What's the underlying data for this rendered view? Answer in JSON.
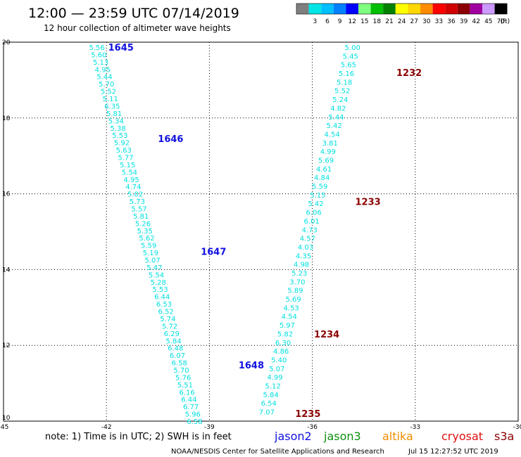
{
  "header": {
    "title": "12:00 — 23:59 UTC 07/14/2019",
    "subtitle": "12 hour collection of altimeter wave heights"
  },
  "color_scale": {
    "unit_label": "(ft)",
    "bins": [
      {
        "label": "",
        "color": "#7f7f7f"
      },
      {
        "label": "3",
        "color": "#00e5e5"
      },
      {
        "label": "6",
        "color": "#00bfff"
      },
      {
        "label": "9",
        "color": "#007fff"
      },
      {
        "label": "12",
        "color": "#0000ff"
      },
      {
        "label": "15",
        "color": "#7fff7f"
      },
      {
        "label": "18",
        "color": "#00bf00"
      },
      {
        "label": "21",
        "color": "#008000"
      },
      {
        "label": "24",
        "color": "#ffff00"
      },
      {
        "label": "27",
        "color": "#ffd700"
      },
      {
        "label": "30",
        "color": "#ff8c00"
      },
      {
        "label": "33",
        "color": "#ff0000"
      },
      {
        "label": "36",
        "color": "#d20000"
      },
      {
        "label": "39",
        "color": "#8b0000"
      },
      {
        "label": "42",
        "color": "#a000a0"
      },
      {
        "label": "45",
        "color": "#cc99ff"
      },
      {
        "label": "70",
        "color": "#000000"
      }
    ]
  },
  "footer": {
    "note": "note: 1) Time is in UTC; 2) SWH is in feet",
    "legend": [
      {
        "name": "jason2",
        "color": "#1010e0"
      },
      {
        "name": "jason3",
        "color": "#109010"
      },
      {
        "name": "altika",
        "color": "#f08c00"
      },
      {
        "name": "cryosat",
        "color": "#e01010"
      },
      {
        "name": "s3a",
        "color": "#8b0000"
      }
    ],
    "credit": "NOAA/NESDIS Center for Satellite Applications and Research",
    "timestamp": "Jul 15 12:27:52 UTC 2019"
  },
  "chart_data": {
    "type": "scatter",
    "xlim": [
      -45,
      -30
    ],
    "ylim": [
      10,
      20
    ],
    "x_ticks": [
      -45,
      -42,
      -39,
      -36,
      -33,
      -30
    ],
    "y_ticks": [
      10,
      12,
      14,
      16,
      18,
      20
    ],
    "x_tick_labels": [
      "-45",
      "-42",
      "-39",
      "-36",
      "-33",
      "-30"
    ],
    "y_tick_labels": [
      "10",
      "12",
      "14",
      "16",
      "18",
      "20"
    ],
    "grid": true,
    "value_color": "#00dfdf",
    "tracks": [
      {
        "satellite": "jason2",
        "label_color": "#1010e0",
        "values": [
          "5.56",
          "5.60",
          "5.13",
          "4.95",
          "5.44",
          "5.70",
          "5.52",
          "5.11",
          "6.35",
          "5.81",
          "5.34",
          "5.38",
          "5.53",
          "5.92",
          "5.63",
          "5.77",
          "5.15",
          "5.54",
          "4.95",
          "4.74",
          "5.02",
          "5.73",
          "5.57",
          "5.81",
          "5.26",
          "5.35",
          "5.62",
          "5.59",
          "5.19",
          "5.07",
          "5.47",
          "5.54",
          "5.28",
          "5.53",
          "6.44",
          "6.53",
          "6.52",
          "5.74",
          "5.72",
          "6.29",
          "5.84",
          "6.48",
          "6.07",
          "6.58",
          "5.70",
          "5.76",
          "5.51",
          "6.16",
          "6.44",
          "6.77",
          "5.96",
          "6.58"
        ],
        "start": {
          "lon": -42.05,
          "lat": 19.87
        },
        "end": {
          "lon": -39.2,
          "lat": 10.0
        },
        "time_labels": [
          {
            "text": "1645",
            "lon": -41.95,
            "lat": 19.87
          },
          {
            "text": "1646",
            "lon": -40.5,
            "lat": 17.46
          },
          {
            "text": "1647",
            "lon": -39.25,
            "lat": 14.48
          },
          {
            "text": "1648",
            "lon": -38.15,
            "lat": 11.48
          }
        ]
      },
      {
        "satellite": "s3a",
        "label_color": "#8b0000",
        "values": [
          "5.00",
          "5.45",
          "5.65",
          "5.16",
          "5.18",
          "5.52",
          "5.24",
          "4.82",
          "5.44",
          "5.42",
          "4.54",
          "3.81",
          "4.99",
          "5.69",
          "4.61",
          "4.84",
          "5.59",
          "5.15",
          "5.42",
          "6.06",
          "6.01",
          "4.73",
          "4.57",
          "4.03",
          "4.35",
          "4.98",
          "5.23",
          "3.70",
          "5.89",
          "5.69",
          "4.53",
          "4.54",
          "5.97",
          "5.82",
          "6.30",
          "4.86",
          "5.40",
          "5.07",
          "4.99",
          "5.12",
          "5.84",
          "6.54",
          "7.07"
        ],
        "start": {
          "lon": -34.6,
          "lat": 19.87
        },
        "end": {
          "lon": -37.1,
          "lat": 10.25
        },
        "time_labels": [
          {
            "text": "1232",
            "lon": -33.55,
            "lat": 19.2
          },
          {
            "text": "1233",
            "lon": -34.75,
            "lat": 15.8
          },
          {
            "text": "1234",
            "lon": -35.95,
            "lat": 12.3
          },
          {
            "text": "1235",
            "lon": -36.5,
            "lat": 10.2
          }
        ]
      }
    ]
  }
}
